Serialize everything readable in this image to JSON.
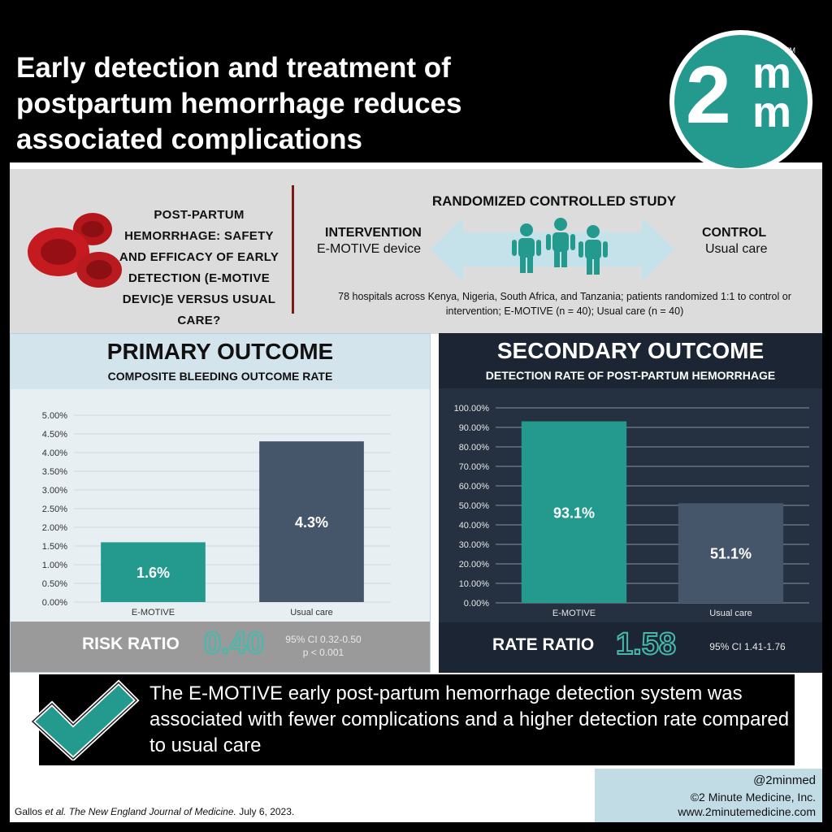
{
  "header": {
    "title": "Early detection and treatment of postpartum hemorrhage reduces associated complications",
    "logo_big": "2",
    "logo_m": "m",
    "logo_tm": "TM"
  },
  "study": {
    "question": "POST-PARTUM HEMORRHAGE: SAFETY AND EFFICACY OF EARLY DETECTION (E-MOTIVE DEVIC)E VERSUS USUAL CARE?",
    "rct_title": "RANDOMIZED CONTROLLED STUDY",
    "intervention_label": "INTERVENTION",
    "intervention_sub": "E-MOTIVE device",
    "control_label": "CONTROL",
    "control_sub": "Usual care",
    "description": "78 hospitals across Kenya, Nigeria, South Africa, and Tanzania; patients randomized 1:1 to control or intervention; E-MOTIVE (n = 40); Usual care (n = 40)"
  },
  "primary": {
    "title": "PRIMARY OUTCOME",
    "subtitle": "COMPOSITE BLEEDING OUTCOME RATE",
    "ratio_label": "RISK RATIO",
    "ratio_value": "0.40",
    "ci": "95% CI 0.32-0.50",
    "p": "p < 0.001"
  },
  "secondary": {
    "title": "SECONDARY OUTCOME",
    "subtitle": "DETECTION RATE OF POST-PARTUM HEMORRHAGE",
    "ratio_label": "RATE RATIO",
    "ratio_value": "1.58",
    "ci": "95% CI 1.41-1.76"
  },
  "chart_data": [
    {
      "type": "bar",
      "categories": [
        "E-MOTIVE",
        "Usual care"
      ],
      "values": [
        1.6,
        4.3
      ],
      "value_labels": [
        "1.6%",
        "4.3%"
      ],
      "yticks": [
        "0.00%",
        "0.50%",
        "1.00%",
        "1.50%",
        "2.00%",
        "2.50%",
        "3.00%",
        "3.50%",
        "4.00%",
        "4.50%",
        "5.00%"
      ],
      "ylim": [
        0,
        5
      ],
      "colors": [
        "#249a8f",
        "#45566b"
      ],
      "grid": true
    },
    {
      "type": "bar",
      "categories": [
        "E-MOTIVE",
        "Usual care"
      ],
      "values": [
        93.1,
        51.1
      ],
      "value_labels": [
        "93.1%",
        "51.1%"
      ],
      "yticks": [
        "0.00%",
        "10.00%",
        "20.00%",
        "30.00%",
        "40.00%",
        "50.00%",
        "60.00%",
        "70.00%",
        "80.00%",
        "90.00%",
        "100.00%"
      ],
      "ylim": [
        0,
        100
      ],
      "colors": [
        "#249a8f",
        "#45566b"
      ],
      "grid": true
    }
  ],
  "conclusion": "The E-MOTIVE early post-partum hemorrhage detection system was associated with fewer complications and a higher detection rate compared to usual care",
  "footer": {
    "citation_authors": "Gallos",
    "citation_etal": "et al.",
    "citation_journal": "The New England Journal of Medicine.",
    "citation_date": "July 6, 2023.",
    "handle": "@2minmed",
    "copyright": "©2 Minute Medicine, Inc.",
    "website": "www.2minutemedicine.com"
  }
}
